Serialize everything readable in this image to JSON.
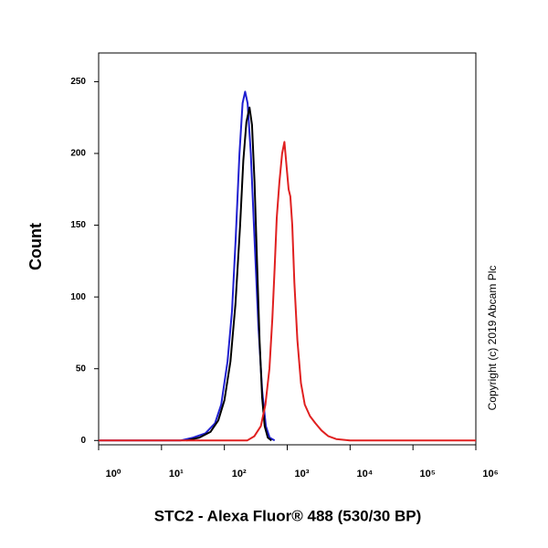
{
  "chart_data": {
    "type": "line",
    "x_label": "STC2 - Alexa Fluor® 488 (530/30 BP)",
    "y_label": "Count",
    "annotation": "Copyright (c) 2019 Abcam Plc",
    "xscale": "log",
    "xlim": [
      1,
      1000000
    ],
    "ylim": [
      -3,
      270
    ],
    "xticks": [
      {
        "value": 1,
        "label": "10⁰"
      },
      {
        "value": 10,
        "label": "10¹"
      },
      {
        "value": 100,
        "label": "10²"
      },
      {
        "value": 1000,
        "label": "10³"
      },
      {
        "value": 10000,
        "label": "10⁴"
      },
      {
        "value": 100000,
        "label": "10⁵"
      },
      {
        "value": 1000000,
        "label": "10⁶"
      }
    ],
    "yticks": [
      0,
      50,
      100,
      150,
      200,
      250
    ],
    "series": [
      {
        "color": "#1f1fd0",
        "x": [
          1,
          20,
          32,
          50,
          71,
          89,
          112,
          132,
          151,
          174,
          195,
          214,
          234,
          263,
          302,
          347,
          398,
          457,
          525,
          631
        ],
        "values": [
          0,
          0,
          2,
          5,
          12,
          25,
          55,
          90,
          140,
          200,
          235,
          243,
          235,
          200,
          140,
          80,
          35,
          10,
          2,
          0
        ]
      },
      {
        "color": "#000000",
        "x": [
          25,
          40,
          60,
          80,
          100,
          125,
          150,
          178,
          200,
          224,
          251,
          275,
          302,
          331,
          363,
          398,
          437,
          490,
          560
        ],
        "values": [
          0,
          2,
          6,
          14,
          28,
          55,
          95,
          150,
          195,
          222,
          232,
          220,
          180,
          125,
          70,
          30,
          10,
          2,
          0
        ]
      },
      {
        "color": "#e02020",
        "x": [
          1,
          230,
          300,
          380,
          450,
          520,
          580,
          630,
          680,
          750,
          830,
          900,
          980,
          1050,
          1120,
          1200,
          1300,
          1450,
          1650,
          1900,
          2300,
          2800,
          3500,
          4500,
          6000,
          10000,
          1000000
        ],
        "values": [
          0,
          0,
          3,
          10,
          25,
          50,
          85,
          120,
          155,
          180,
          200,
          208,
          190,
          175,
          170,
          150,
          110,
          70,
          40,
          25,
          17,
          12,
          7,
          3,
          1,
          0,
          0
        ]
      }
    ]
  }
}
